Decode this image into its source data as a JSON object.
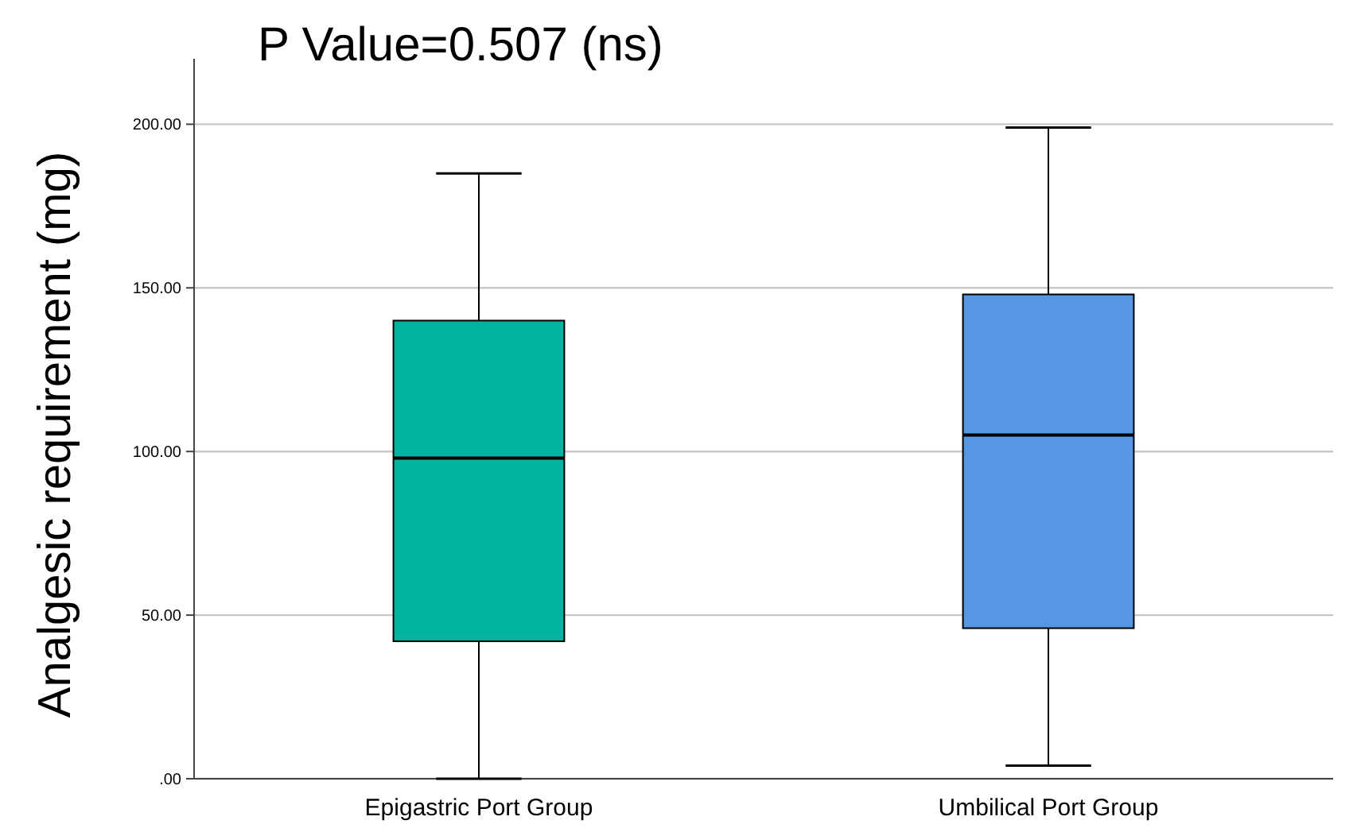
{
  "chart_data": {
    "type": "box",
    "title": "P Value=0.507 (ns)",
    "ylabel": "Analgesic requirement (mg)",
    "categories": [
      "Epigastric Port Group",
      "Umbilical Port Group"
    ],
    "boxes": [
      {
        "low": 0,
        "q1": 42,
        "median": 98,
        "q3": 140,
        "high": 185
      },
      {
        "low": 4,
        "q1": 46,
        "median": 105,
        "q3": 148,
        "high": 199
      }
    ],
    "colors": [
      "#00b3a0",
      "#5597e2"
    ],
    "ylim": [
      0,
      220
    ],
    "yticks": [
      {
        "value": 0,
        "label": ".00"
      },
      {
        "value": 50,
        "label": "50.00"
      },
      {
        "value": 100,
        "label": "100.00"
      },
      {
        "value": 150,
        "label": "150.00"
      },
      {
        "value": 200,
        "label": "200.00"
      }
    ],
    "grid": "y"
  }
}
